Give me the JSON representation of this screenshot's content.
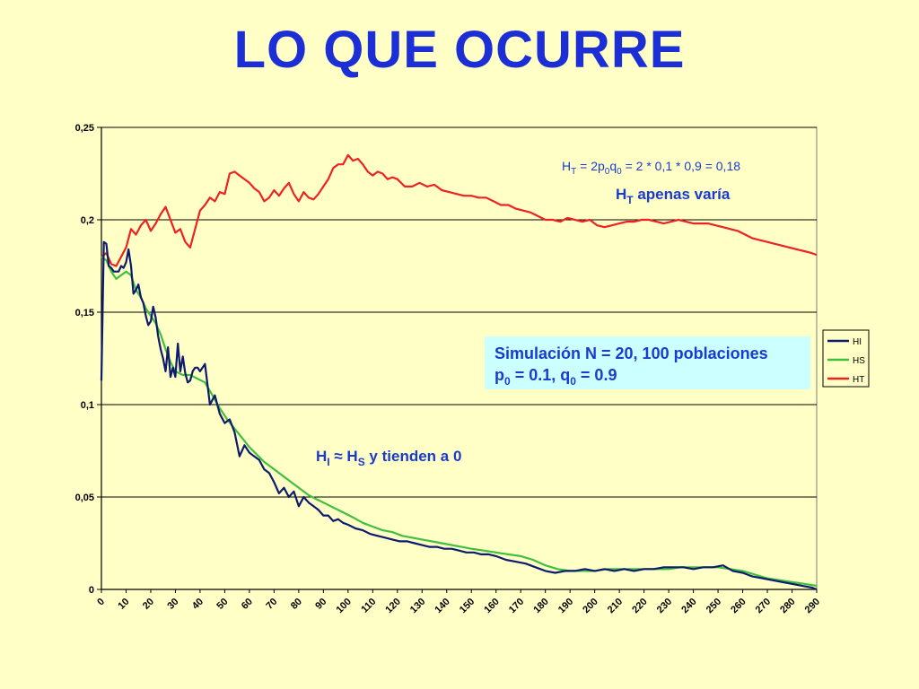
{
  "slide": {
    "title": "LO QUE OCURRE"
  },
  "annotations": {
    "ht_formula": {
      "H": "H",
      "sub_T": "T",
      "eq1": " = 2p",
      "sub_0a": "0",
      "q": "q",
      "sub_0b": "0",
      "rest": " = 2 * 0,1 * 0,9 = 0,18"
    },
    "ht_note": {
      "H": "H",
      "sub": "T",
      "rest": " apenas varía"
    },
    "hi_note": {
      "H1": "H",
      "sub1": "I",
      "mid": " ≈ H",
      "sub2": "S",
      "rest": " y tienden a 0"
    },
    "simulation": {
      "line1": "Simulación N = 20, 100 poblaciones",
      "p": "p",
      "p_sub": "0",
      "p_rest": " = 0.1, q",
      "q_sub": "0",
      "q_rest": " = 0.9",
      "bg_color": "#ccffff"
    }
  },
  "chart_data": {
    "type": "line",
    "title": "",
    "xlabel": "",
    "ylabel": "",
    "xlim": [
      0,
      290
    ],
    "ylim": [
      0,
      0.25
    ],
    "y_ticks": [
      "0",
      "0,05",
      "0,1",
      "0,15",
      "0,2",
      "0,25"
    ],
    "y_tick_values": [
      0,
      0.05,
      0.1,
      0.15,
      0.2,
      0.25
    ],
    "x_ticks": [
      0,
      10,
      20,
      30,
      40,
      50,
      60,
      70,
      80,
      90,
      100,
      110,
      120,
      130,
      140,
      150,
      160,
      170,
      180,
      190,
      200,
      210,
      220,
      230,
      240,
      250,
      260,
      270,
      280,
      290
    ],
    "grid": "horizontal",
    "legend": "right",
    "series": [
      {
        "name": "HI",
        "color": "#0d1b6e",
        "x": [
          0,
          1,
          2,
          3,
          4,
          5,
          6,
          7,
          8,
          9,
          10,
          11,
          12,
          13,
          14,
          15,
          16,
          17,
          18,
          19,
          20,
          21,
          22,
          23,
          24,
          25,
          26,
          27,
          28,
          29,
          30,
          31,
          32,
          33,
          34,
          35,
          36,
          37,
          38,
          39,
          40,
          42,
          44,
          46,
          48,
          50,
          52,
          54,
          56,
          58,
          60,
          62,
          64,
          66,
          68,
          70,
          72,
          74,
          76,
          78,
          80,
          82,
          84,
          86,
          88,
          90,
          92,
          94,
          96,
          98,
          100,
          103,
          106,
          109,
          112,
          115,
          118,
          121,
          124,
          127,
          130,
          133,
          136,
          139,
          142,
          145,
          148,
          151,
          154,
          157,
          160,
          164,
          168,
          172,
          176,
          180,
          184,
          188,
          192,
          196,
          200,
          204,
          208,
          212,
          216,
          220,
          224,
          228,
          232,
          236,
          240,
          244,
          248,
          252,
          256,
          260,
          264,
          268,
          272,
          276,
          280,
          284,
          288,
          290
        ],
        "y": [
          0.113,
          0.188,
          0.187,
          0.175,
          0.174,
          0.172,
          0.172,
          0.172,
          0.175,
          0.174,
          0.177,
          0.184,
          0.175,
          0.16,
          0.162,
          0.165,
          0.158,
          0.155,
          0.148,
          0.143,
          0.145,
          0.153,
          0.147,
          0.137,
          0.13,
          0.125,
          0.118,
          0.131,
          0.115,
          0.12,
          0.115,
          0.133,
          0.118,
          0.126,
          0.117,
          0.112,
          0.113,
          0.118,
          0.12,
          0.12,
          0.118,
          0.122,
          0.1,
          0.105,
          0.095,
          0.09,
          0.092,
          0.085,
          0.072,
          0.078,
          0.074,
          0.072,
          0.07,
          0.065,
          0.063,
          0.058,
          0.052,
          0.055,
          0.05,
          0.053,
          0.045,
          0.05,
          0.047,
          0.045,
          0.043,
          0.04,
          0.04,
          0.037,
          0.038,
          0.036,
          0.035,
          0.033,
          0.032,
          0.03,
          0.029,
          0.028,
          0.027,
          0.026,
          0.026,
          0.025,
          0.024,
          0.023,
          0.023,
          0.022,
          0.022,
          0.021,
          0.02,
          0.02,
          0.019,
          0.019,
          0.018,
          0.016,
          0.015,
          0.014,
          0.012,
          0.01,
          0.009,
          0.01,
          0.01,
          0.011,
          0.01,
          0.011,
          0.01,
          0.011,
          0.01,
          0.011,
          0.011,
          0.012,
          0.012,
          0.012,
          0.011,
          0.012,
          0.012,
          0.013,
          0.01,
          0.009,
          0.007,
          0.006,
          0.005,
          0.004,
          0.003,
          0.002,
          0.001,
          0.0
        ]
      },
      {
        "name": "HS",
        "color": "#3fbf3f",
        "x": [
          0,
          2,
          4,
          6,
          8,
          10,
          12,
          14,
          16,
          18,
          20,
          22,
          24,
          26,
          28,
          30,
          33,
          36,
          39,
          42,
          45,
          48,
          51,
          54,
          57,
          60,
          63,
          66,
          69,
          72,
          75,
          78,
          81,
          84,
          87,
          90,
          93,
          96,
          99,
          102,
          106,
          110,
          114,
          118,
          122,
          126,
          130,
          134,
          138,
          142,
          146,
          150,
          155,
          160,
          165,
          170,
          175,
          180,
          185,
          190,
          195,
          200,
          205,
          210,
          215,
          220,
          225,
          230,
          235,
          240,
          245,
          250,
          255,
          260,
          265,
          270,
          275,
          280,
          285,
          290
        ],
        "y": [
          0.18,
          0.178,
          0.172,
          0.168,
          0.17,
          0.172,
          0.17,
          0.162,
          0.158,
          0.152,
          0.148,
          0.144,
          0.138,
          0.13,
          0.123,
          0.118,
          0.116,
          0.116,
          0.114,
          0.112,
          0.105,
          0.098,
          0.092,
          0.087,
          0.082,
          0.077,
          0.073,
          0.069,
          0.066,
          0.063,
          0.06,
          0.057,
          0.054,
          0.051,
          0.049,
          0.047,
          0.045,
          0.043,
          0.041,
          0.039,
          0.036,
          0.034,
          0.032,
          0.031,
          0.029,
          0.028,
          0.027,
          0.026,
          0.025,
          0.024,
          0.023,
          0.022,
          0.021,
          0.02,
          0.019,
          0.018,
          0.016,
          0.013,
          0.011,
          0.01,
          0.01,
          0.01,
          0.011,
          0.011,
          0.011,
          0.011,
          0.011,
          0.011,
          0.012,
          0.012,
          0.012,
          0.012,
          0.011,
          0.01,
          0.008,
          0.006,
          0.005,
          0.004,
          0.003,
          0.002
        ]
      },
      {
        "name": "HT",
        "color": "#ee2222",
        "x": [
          0,
          2,
          4,
          6,
          8,
          10,
          12,
          14,
          16,
          18,
          20,
          22,
          24,
          26,
          28,
          30,
          32,
          34,
          36,
          38,
          40,
          42,
          44,
          46,
          48,
          50,
          52,
          54,
          56,
          58,
          60,
          62,
          64,
          66,
          68,
          70,
          72,
          74,
          76,
          78,
          80,
          82,
          84,
          86,
          88,
          90,
          92,
          94,
          96,
          98,
          100,
          102,
          104,
          106,
          108,
          110,
          112,
          114,
          116,
          118,
          120,
          123,
          126,
          129,
          132,
          135,
          138,
          141,
          144,
          147,
          150,
          153,
          156,
          159,
          162,
          165,
          168,
          171,
          174,
          177,
          180,
          183,
          186,
          189,
          192,
          195,
          198,
          201,
          204,
          207,
          210,
          213,
          216,
          219,
          222,
          225,
          228,
          231,
          234,
          237,
          240,
          243,
          246,
          249,
          252,
          255,
          258,
          261,
          264,
          267,
          270,
          273,
          276,
          279,
          282,
          285,
          288,
          290
        ],
        "y": [
          0.18,
          0.182,
          0.176,
          0.175,
          0.18,
          0.185,
          0.195,
          0.192,
          0.197,
          0.2,
          0.194,
          0.198,
          0.203,
          0.207,
          0.2,
          0.193,
          0.195,
          0.188,
          0.185,
          0.195,
          0.205,
          0.208,
          0.212,
          0.21,
          0.215,
          0.214,
          0.225,
          0.226,
          0.224,
          0.222,
          0.22,
          0.217,
          0.215,
          0.21,
          0.212,
          0.216,
          0.213,
          0.217,
          0.22,
          0.214,
          0.21,
          0.215,
          0.212,
          0.211,
          0.214,
          0.218,
          0.222,
          0.228,
          0.23,
          0.23,
          0.235,
          0.232,
          0.233,
          0.23,
          0.226,
          0.224,
          0.226,
          0.225,
          0.222,
          0.223,
          0.222,
          0.218,
          0.218,
          0.22,
          0.218,
          0.219,
          0.216,
          0.215,
          0.214,
          0.213,
          0.213,
          0.212,
          0.212,
          0.21,
          0.208,
          0.208,
          0.206,
          0.205,
          0.204,
          0.202,
          0.2,
          0.2,
          0.199,
          0.201,
          0.2,
          0.199,
          0.2,
          0.197,
          0.196,
          0.197,
          0.198,
          0.199,
          0.199,
          0.2,
          0.2,
          0.199,
          0.198,
          0.199,
          0.2,
          0.199,
          0.198,
          0.198,
          0.198,
          0.197,
          0.196,
          0.195,
          0.194,
          0.192,
          0.19,
          0.189,
          0.188,
          0.187,
          0.186,
          0.185,
          0.184,
          0.183,
          0.182,
          0.181
        ]
      }
    ]
  }
}
